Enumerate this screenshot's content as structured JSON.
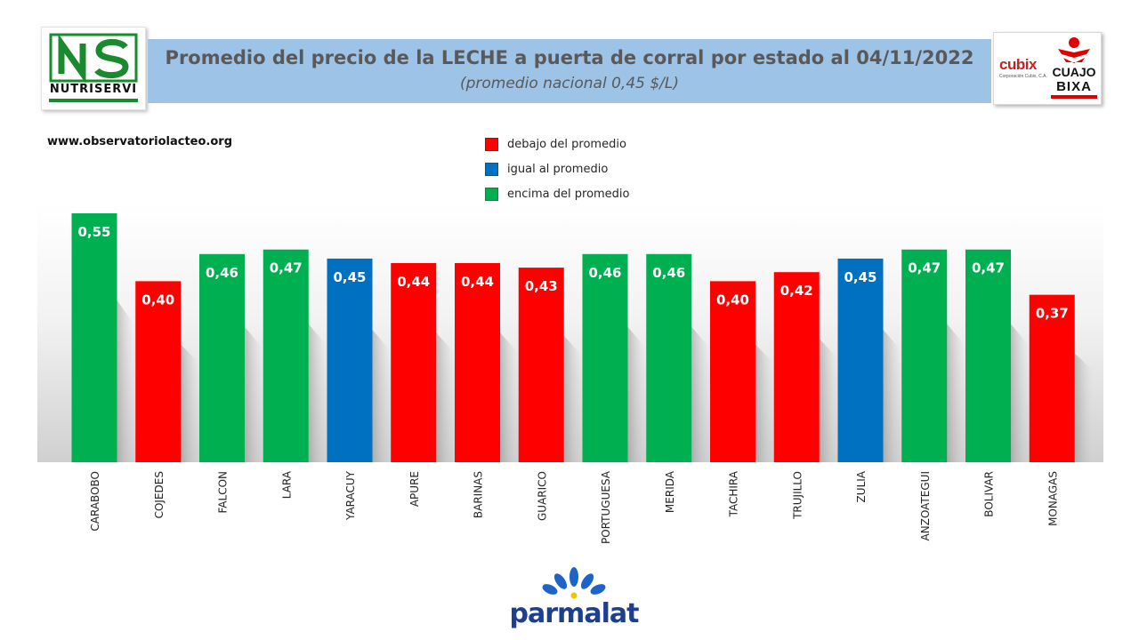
{
  "header": {
    "title": "Promedio del precio de la LECHE a puerta de corral por estado al 04/11/2022",
    "subtitle": "(promedio nacional 0,45 $/L)",
    "website": "www.observatoriolacteo.org"
  },
  "logos": {
    "left": {
      "name": "NUTRISERVI",
      "icon": "ns-logo-icon"
    },
    "right": {
      "brand": "cubix",
      "brand_sub": "Corporación Cubix, C.A.",
      "product_line1": "CUAJO",
      "product_line2": "BIXA",
      "icon": "cuajo-bixa-figure-icon"
    },
    "bottom": {
      "name": "parmalat",
      "icon": "parmalat-flower-icon"
    }
  },
  "legend": [
    {
      "label": "debajo del promedio",
      "color": "#ff0000"
    },
    {
      "label": "igual al promedio",
      "color": "#0070c0"
    },
    {
      "label": "encima del promedio",
      "color": "#00b050"
    }
  ],
  "chart_data": {
    "type": "bar",
    "title": "Promedio del precio de la LECHE a puerta de corral por estado al 04/11/2022",
    "xlabel": "",
    "ylabel": "",
    "ylim": [
      0,
      0.56
    ],
    "grid": false,
    "legend_position": "top-center",
    "categories": [
      "CARABOBO",
      "COJEDES",
      "FALCON",
      "LARA",
      "YARACUY",
      "APURE",
      "BARINAS",
      "GUARICO",
      "PORTUGUESA",
      "MERIDA",
      "TACHIRA",
      "TRUJILLO",
      "ZULIA",
      "ANZOATEGUI",
      "BOLIVAR",
      "MONAGAS"
    ],
    "values": [
      0.55,
      0.4,
      0.46,
      0.47,
      0.45,
      0.44,
      0.44,
      0.43,
      0.46,
      0.46,
      0.4,
      0.42,
      0.45,
      0.47,
      0.47,
      0.37
    ],
    "value_labels": [
      "0,55",
      "0,40",
      "0,46",
      "0,47",
      "0,45",
      "0,44",
      "0,44",
      "0,43",
      "0,46",
      "0,46",
      "0,40",
      "0,42",
      "0,45",
      "0,47",
      "0,47",
      "0,37"
    ],
    "bar_colors": [
      "#00b050",
      "#ff0000",
      "#00b050",
      "#00b050",
      "#0070c0",
      "#ff0000",
      "#ff0000",
      "#ff0000",
      "#00b050",
      "#00b050",
      "#ff0000",
      "#ff0000",
      "#0070c0",
      "#00b050",
      "#00b050",
      "#ff0000"
    ]
  }
}
